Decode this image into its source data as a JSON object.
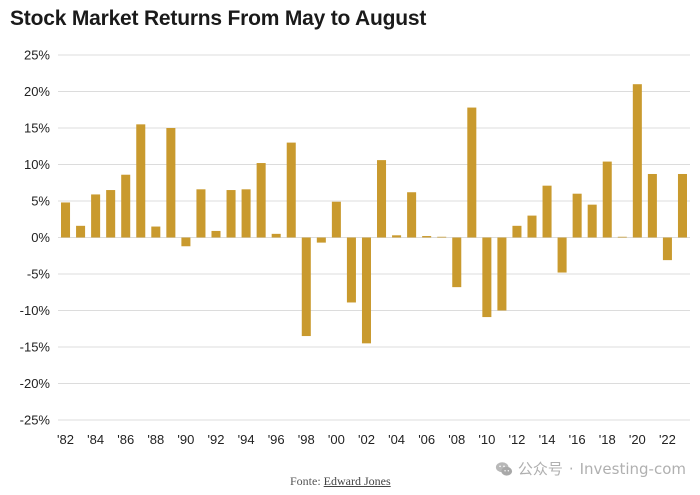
{
  "chart_data": {
    "type": "bar",
    "title": "Stock Market Returns From May to August",
    "ylim": [
      -25,
      25
    ],
    "yticks": [
      25,
      20,
      15,
      10,
      5,
      0,
      -5,
      -10,
      -15,
      -20,
      -25
    ],
    "ytick_labels": [
      "25%",
      "20%",
      "15%",
      "10%",
      "5%",
      "0%",
      "-5%",
      "-10%",
      "-15%",
      "-20%",
      "-25%"
    ],
    "x_tick_labels": [
      "'82",
      "'84",
      "'86",
      "'88",
      "'90",
      "'92",
      "'94",
      "'96",
      "'98",
      "'00",
      "'02",
      "'04",
      "'06",
      "'08",
      "'10",
      "'12",
      "'14",
      "'16",
      "'18",
      "'20",
      "'22"
    ],
    "categories": [
      "1982",
      "1983",
      "1984",
      "1985",
      "1986",
      "1987",
      "1988",
      "1989",
      "1990",
      "1991",
      "1992",
      "1993",
      "1994",
      "1995",
      "1996",
      "1997",
      "1998",
      "1999",
      "2000",
      "2001",
      "2002",
      "2003",
      "2004",
      "2005",
      "2006",
      "2007",
      "2008",
      "2009",
      "2010",
      "2011",
      "2012",
      "2013",
      "2014",
      "2015",
      "2016",
      "2017",
      "2018",
      "2019",
      "2020",
      "2021",
      "2022",
      "2023"
    ],
    "values": [
      4.8,
      1.6,
      5.9,
      6.5,
      8.6,
      15.5,
      1.5,
      15.0,
      -1.2,
      6.6,
      0.9,
      6.5,
      6.6,
      10.2,
      0.5,
      13.0,
      -13.5,
      -0.7,
      4.9,
      -8.9,
      -14.5,
      10.6,
      0.3,
      6.2,
      0.2,
      0.1,
      -6.8,
      17.8,
      -10.9,
      -10.0,
      1.6,
      3.0,
      7.1,
      -4.8,
      6.0,
      4.5,
      10.4,
      0.1,
      21.0,
      8.7,
      -3.1,
      8.7
    ],
    "bar_color": "#C99A2E",
    "grid_color": "#dcdcdc"
  },
  "source": {
    "prefix": "Fonte: ",
    "link": "Edward Jones"
  },
  "watermark": {
    "channel": "公众号",
    "separator": "·",
    "site": "Investing-com"
  }
}
